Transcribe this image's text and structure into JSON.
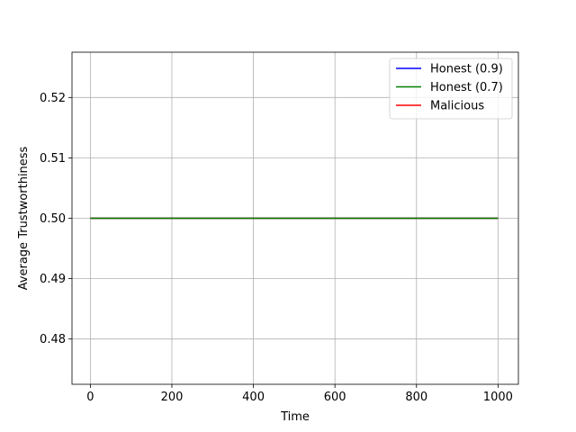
{
  "chart_data": {
    "type": "line",
    "title": "",
    "xlabel": "Time",
    "ylabel": "Average Trustworthiness",
    "xlim": [
      -45,
      1050
    ],
    "ylim": [
      0.4725,
      0.5275
    ],
    "xticks": [
      0,
      200,
      400,
      600,
      800,
      1000
    ],
    "yticks": [
      0.48,
      0.49,
      0.5,
      0.51,
      0.52
    ],
    "xtick_labels": [
      "0",
      "200",
      "400",
      "600",
      "800",
      "1000"
    ],
    "ytick_labels": [
      "0.48",
      "0.49",
      "0.50",
      "0.51",
      "0.52"
    ],
    "grid": true,
    "legend_position": "top-right",
    "series": [
      {
        "name": "Honest (0.9)",
        "color": "#0000ff",
        "x": [
          0,
          1000
        ],
        "y": [
          0.5,
          0.5
        ]
      },
      {
        "name": "Honest (0.7)",
        "color": "#008000",
        "x": [
          0,
          1000
        ],
        "y": [
          0.5,
          0.5
        ]
      },
      {
        "name": "Malicious",
        "color": "#ff0000",
        "x": [
          0,
          1000
        ],
        "y": [
          0.5,
          0.5
        ]
      }
    ],
    "draw_order": [
      0,
      2,
      1
    ]
  }
}
